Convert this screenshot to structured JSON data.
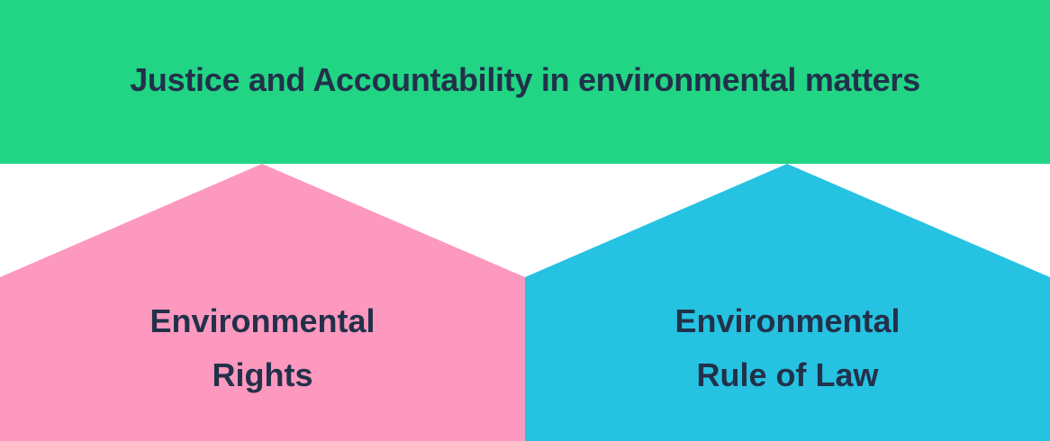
{
  "banner": {
    "title": "Justice and Accountability in environmental matters",
    "color": "#21d585"
  },
  "pillars": [
    {
      "line1": "Environmental",
      "line2": "Rights",
      "color": "#fd98bf"
    },
    {
      "line1": "Environmental",
      "line2": "Rule of Law",
      "color": "#25c2e2"
    }
  ],
  "text_color": "#22314a"
}
